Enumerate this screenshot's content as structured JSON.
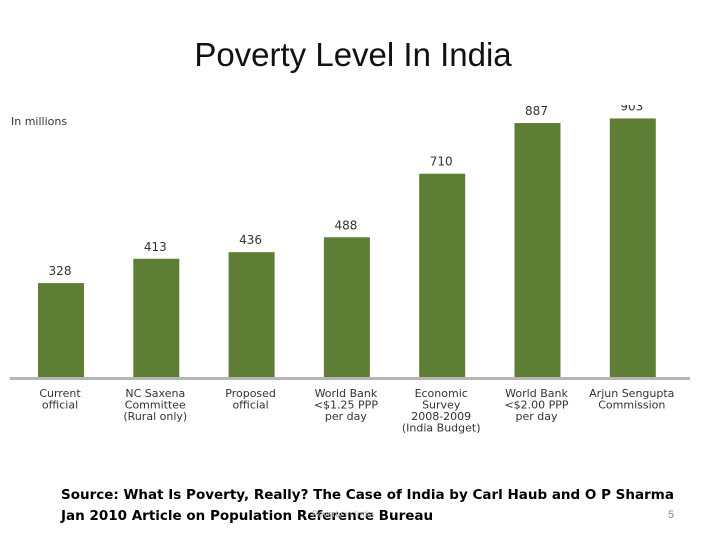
{
  "slide": {
    "title": "Poverty Level In India",
    "source_line1": "Source: What Is Poverty, Really? The Case of India by Carl Haub and O P Sharma",
    "source_line2": "Jan 2010 Article on Population Reference Bureau",
    "footer_faint": "Poverty in India",
    "page_number": "5"
  },
  "chart_data": {
    "type": "bar",
    "unit_label": "In millions",
    "categories": [
      [
        "Current",
        "official"
      ],
      [
        "NC Saxena",
        "Committee",
        "(Rural only)"
      ],
      [
        "Proposed",
        "official"
      ],
      [
        "World Bank",
        "<$1.25 PPP",
        "per day"
      ],
      [
        "Economic",
        "Survey",
        "2008-2009",
        "(India Budget)"
      ],
      [
        "World Bank",
        "<$2.00 PPP",
        "per day"
      ],
      [
        "Arjun Sengupta",
        "Commission"
      ]
    ],
    "values": [
      328,
      413,
      436,
      488,
      710,
      887,
      903
    ],
    "ylim": [
      0,
      950
    ],
    "bar_color": "#5f7e35",
    "axis_color": "#b5b5b5",
    "text_color": "#333333"
  }
}
